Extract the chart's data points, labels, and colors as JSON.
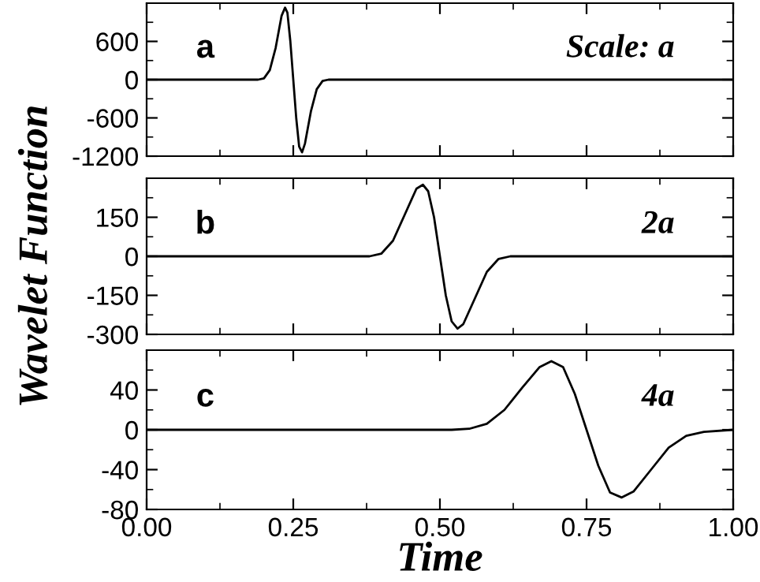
{
  "chart_data": [
    {
      "type": "line",
      "annotations": [
        "a",
        "Scale: a"
      ],
      "xlim": [
        0,
        1
      ],
      "xticks": [
        0,
        0.25,
        0.5,
        0.75,
        1
      ],
      "ylim": [
        -1200,
        1200
      ],
      "yticks": [
        600,
        0,
        -600,
        -1200
      ],
      "tick_labels": "y",
      "grid": false,
      "legend": false,
      "series": [
        {
          "color": "#000000",
          "x": [
            0,
            0.19,
            0.2,
            0.21,
            0.22,
            0.23,
            0.236,
            0.24,
            0.245,
            0.25,
            0.255,
            0.26,
            0.265,
            0.27,
            0.28,
            0.29,
            0.3,
            0.31,
            1.0
          ],
          "values": [
            0,
            0,
            20,
            150,
            500,
            1000,
            1130,
            1050,
            600,
            0,
            -600,
            -1050,
            -1140,
            -1000,
            -500,
            -150,
            -20,
            0,
            0
          ]
        }
      ]
    },
    {
      "type": "line",
      "annotations": [
        "b",
        "2a"
      ],
      "ylabel": "Wavelet Function",
      "xlim": [
        0,
        1
      ],
      "xticks": [
        0,
        0.25,
        0.5,
        0.75,
        1
      ],
      "ylim": [
        -300,
        300
      ],
      "yticks": [
        150,
        0,
        -150,
        -300
      ],
      "tick_labels": "y",
      "grid": false,
      "legend": false,
      "series": [
        {
          "color": "#000000",
          "x": [
            0,
            0.38,
            0.4,
            0.42,
            0.44,
            0.46,
            0.471,
            0.48,
            0.49,
            0.5,
            0.51,
            0.52,
            0.53,
            0.54,
            0.56,
            0.58,
            0.6,
            0.62,
            1.0
          ],
          "values": [
            0,
            0,
            10,
            60,
            160,
            260,
            275,
            250,
            150,
            0,
            -150,
            -250,
            -278,
            -260,
            -160,
            -60,
            -10,
            0,
            0
          ]
        }
      ]
    },
    {
      "type": "line",
      "annotations": [
        "c",
        "4a"
      ],
      "xlabel": "Time",
      "xlim": [
        0,
        1
      ],
      "xticks": [
        {
          "value": 0,
          "label": "0.00"
        },
        {
          "value": 0.25,
          "label": "0.25"
        },
        {
          "value": 0.5,
          "label": "0.50"
        },
        {
          "value": 0.75,
          "label": "0.75"
        },
        {
          "value": 1,
          "label": "1.00"
        }
      ],
      "ylim": [
        -80,
        80
      ],
      "yticks": [
        40,
        0,
        -40,
        -80
      ],
      "grid": false,
      "legend": false,
      "series": [
        {
          "color": "#000000",
          "x": [
            0,
            0.52,
            0.55,
            0.58,
            0.61,
            0.64,
            0.67,
            0.69,
            0.71,
            0.73,
            0.75,
            0.77,
            0.79,
            0.81,
            0.83,
            0.86,
            0.89,
            0.92,
            0.95,
            1.0
          ],
          "values": [
            0,
            0,
            1,
            6,
            20,
            42,
            63,
            69,
            63,
            36,
            0,
            -36,
            -63,
            -68,
            -62,
            -40,
            -18,
            -6,
            -2,
            0
          ]
        }
      ]
    }
  ]
}
